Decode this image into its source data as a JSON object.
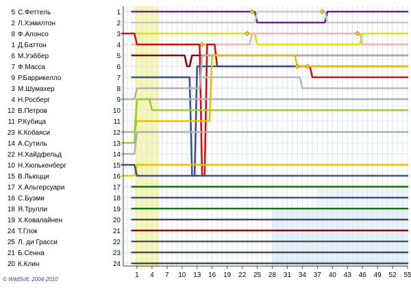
{
  "chart_data": {
    "type": "line",
    "copyright": "© WildSoft, 2004-2010",
    "x_ticks": [
      1,
      4,
      7,
      10,
      13,
      16,
      19,
      22,
      25,
      28,
      31,
      34,
      37,
      40,
      43,
      46,
      49,
      52,
      55
    ],
    "y_ticks": [
      1,
      2,
      3,
      4,
      5,
      6,
      7,
      8,
      9,
      10,
      11,
      12,
      13,
      14,
      15,
      16,
      17,
      18,
      19,
      20,
      21,
      22,
      23,
      24
    ],
    "xlim": [
      -2,
      55
    ],
    "ylim": [
      1,
      24
    ],
    "safety_car_laps": [
      1,
      5
    ],
    "grid": true,
    "drivers": [
      {
        "grid": 1,
        "number": "5",
        "name": "С.Феттель",
        "color": "#6a1f8a",
        "points": [
          [
            0,
            1
          ],
          [
            24,
            1
          ],
          [
            25,
            2
          ],
          [
            38,
            2
          ],
          [
            39,
            1
          ],
          [
            55,
            1
          ]
        ],
        "pits": [
          [
            24,
            1
          ],
          [
            38,
            1
          ]
        ],
        "crashes": []
      },
      {
        "grid": 2,
        "number": "2",
        "name": "Л.Хэмилтон",
        "color": "#c8c8c8",
        "points": [
          [
            0,
            2
          ],
          [
            24,
            2
          ],
          [
            25,
            1
          ],
          [
            38,
            1
          ],
          [
            39,
            2
          ],
          [
            55,
            2
          ]
        ],
        "pits": [],
        "crashes": []
      },
      {
        "grid": 3,
        "number": "8",
        "name": "Ф.Алонсо",
        "color": "#e0e000",
        "points": [
          [
            0,
            3
          ],
          [
            24,
            3
          ],
          [
            25,
            4
          ],
          [
            45,
            4
          ],
          [
            46,
            3
          ],
          [
            55,
            3
          ]
        ],
        "pits": [
          [
            23,
            3
          ],
          [
            45,
            3
          ]
        ],
        "crashes": []
      },
      {
        "grid": 4,
        "number": "1",
        "name": "Д.Баттон",
        "color": "#e8b4b4",
        "points": [
          [
            0,
            4
          ],
          [
            23,
            4
          ],
          [
            24,
            3
          ],
          [
            45,
            3
          ],
          [
            46,
            4
          ],
          [
            55,
            4
          ]
        ],
        "pits": [],
        "crashes": []
      },
      {
        "grid": 5,
        "number": "6",
        "name": "М.Уэббер",
        "color": "#880000",
        "points": [
          [
            0,
            5
          ],
          [
            10,
            5
          ],
          [
            11,
            6
          ],
          [
            12,
            5
          ],
          [
            55,
            5
          ]
        ],
        "pits": [],
        "crashes": []
      },
      {
        "grid": 6,
        "number": "7",
        "name": "Ф.Масса",
        "color": "#d01010",
        "points": [
          [
            -2,
            3
          ],
          [
            1,
            4
          ],
          [
            10,
            4
          ],
          [
            13,
            4
          ],
          [
            14,
            16
          ],
          [
            15,
            4
          ],
          [
            16,
            4
          ],
          [
            17,
            6
          ],
          [
            33,
            6
          ],
          [
            35,
            6
          ],
          [
            36,
            7
          ],
          [
            55,
            7
          ]
        ],
        "pits": [
          [
            14,
            4
          ],
          [
            33,
            6
          ],
          [
            35,
            6
          ]
        ],
        "crashes": []
      },
      {
        "grid": 7,
        "number": "9",
        "name": "Р.Баррикелло",
        "color": "#b8b8b8",
        "points": [
          [
            0,
            7
          ],
          [
            33,
            7
          ],
          [
            34,
            8
          ],
          [
            55,
            8
          ]
        ],
        "pits": [],
        "crashes": []
      },
      {
        "grid": 8,
        "number": "3",
        "name": "М.Шумахер",
        "color": "#3c508c",
        "points": [
          [
            0,
            7
          ],
          [
            11,
            7
          ],
          [
            12,
            16
          ],
          [
            13,
            6
          ],
          [
            55,
            6
          ]
        ],
        "pits": [],
        "crashes": []
      },
      {
        "grid": 9,
        "number": "4",
        "name": "Н.Росберг",
        "color": "#b0b0b0",
        "points": [
          [
            -2,
            9
          ],
          [
            1,
            8
          ],
          [
            13,
            8
          ],
          [
            14,
            5
          ],
          [
            55,
            5
          ]
        ],
        "pits": [],
        "crashes": []
      },
      {
        "grid": 10,
        "number": "12",
        "name": "В.Петров",
        "color": "#e8c000",
        "points": [
          [
            -2,
            12
          ],
          [
            1,
            11
          ],
          [
            15,
            11
          ],
          [
            16,
            5
          ],
          [
            33,
            6
          ],
          [
            55,
            6
          ]
        ],
        "pits": [],
        "crashes": []
      },
      {
        "grid": 11,
        "number": "11",
        "name": "Р.Кубица",
        "color": "#b0b0b0",
        "points": [
          [
            -2,
            12
          ],
          [
            1,
            9
          ],
          [
            55,
            9
          ]
        ],
        "pits": [],
        "crashes": []
      },
      {
        "grid": 12,
        "number": "23",
        "name": "К.Кобаяси",
        "color": "#9acd32",
        "points": [
          [
            -2,
            13
          ],
          [
            1,
            9
          ],
          [
            4,
            10
          ],
          [
            55,
            10
          ]
        ],
        "pits": [],
        "crashes": []
      },
      {
        "grid": 13,
        "number": "14",
        "name": "А.Сутиль",
        "color": "#b0b0b0",
        "points": [
          [
            -2,
            14
          ],
          [
            1,
            12
          ],
          [
            55,
            12
          ]
        ],
        "pits": [],
        "crashes": []
      },
      {
        "grid": 14,
        "number": "22",
        "name": "Н.Хайдфельд",
        "color": "#e8c000",
        "points": [
          [
            -2,
            16
          ],
          [
            1,
            15
          ],
          [
            55,
            15
          ]
        ],
        "pits": [],
        "crashes": []
      },
      {
        "grid": 15,
        "number": "10",
        "name": "Н.Хюлькенберг",
        "color": "#3c508c",
        "points": [
          [
            -2,
            15
          ],
          [
            1,
            16
          ],
          [
            55,
            16
          ]
        ],
        "pits": [],
        "crashes": []
      },
      {
        "grid": 16,
        "number": "15",
        "name": "В.Льюцци",
        "color": "#e8c000",
        "points": [
          [
            0,
            17
          ],
          [
            55,
            17
          ]
        ],
        "pits": [],
        "crashes": []
      },
      {
        "grid": 17,
        "number": "17",
        "name": "Х.Альгерсуари",
        "color": "#1a6e1a",
        "points": [
          [
            0,
            17
          ],
          [
            55,
            17
          ]
        ],
        "pits": [],
        "crashes": []
      },
      {
        "grid": 18,
        "number": "16",
        "name": "С.Буэми",
        "color": "#3c508c",
        "points": [
          [
            0,
            18
          ],
          [
            55,
            18
          ]
        ],
        "pits": [],
        "crashes": []
      },
      {
        "grid": 19,
        "number": "18",
        "name": "Я.Трулли",
        "color": "#1a6e1a",
        "points": [
          [
            0,
            19
          ],
          [
            55,
            19
          ]
        ],
        "pits": [],
        "crashes": []
      },
      {
        "grid": 20,
        "number": "19",
        "name": "Х.Ковалайнен",
        "color": "#4a4a4a",
        "points": [
          [
            0,
            20
          ],
          [
            55,
            20
          ]
        ],
        "pits": [],
        "crashes": []
      },
      {
        "grid": 21,
        "number": "24",
        "name": "Т.Глок",
        "color": "#8b0000",
        "points": [
          [
            0,
            21
          ],
          [
            55,
            21
          ]
        ],
        "pits": [],
        "crashes": []
      },
      {
        "grid": 22,
        "number": "25",
        "name": "Л. ди Грасси",
        "color": "#555555",
        "points": [
          [
            0,
            22
          ],
          [
            55,
            22
          ]
        ],
        "pits": [],
        "crashes": []
      },
      {
        "grid": 23,
        "number": "21",
        "name": "Б.Сенна",
        "color": "#4a4a4a",
        "points": [
          [
            0,
            23
          ],
          [
            55,
            23
          ]
        ],
        "pits": [],
        "crashes": []
      },
      {
        "grid": 24,
        "number": "20",
        "name": "К.Клин",
        "color": "#4a4a4a",
        "points": [
          [
            0,
            24
          ],
          [
            55,
            24
          ]
        ],
        "pits": [],
        "crashes": []
      }
    ]
  }
}
